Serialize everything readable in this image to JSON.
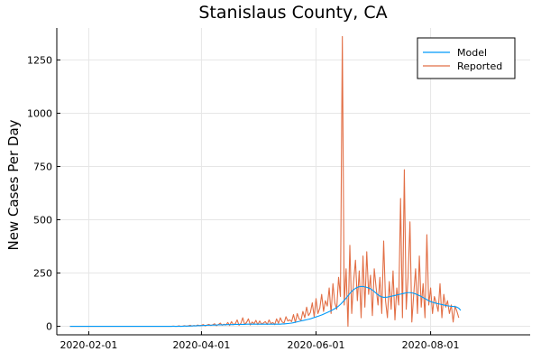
{
  "chart_data": {
    "type": "line",
    "title": "Stanislaus County, CA",
    "xlabel": "",
    "ylabel": "New Cases Per Day",
    "x_start": "2020-01-22",
    "x_ticks": [
      "2020-02-01",
      "2020-04-01",
      "2020-06-01",
      "2020-08-01"
    ],
    "x_range": [
      "2020-01-15",
      "2020-09-23"
    ],
    "ylim": [
      -40,
      1400
    ],
    "y_ticks": [
      0,
      250,
      500,
      750,
      1000,
      1250
    ],
    "y_tick_labels": [
      "0",
      "250",
      "500",
      "750",
      "1000",
      "1250"
    ],
    "grid": true,
    "legend_position": "top-right",
    "series": [
      {
        "name": "Model",
        "color": "#009af9",
        "values": [
          0,
          0,
          0,
          0,
          0,
          0,
          0,
          0,
          0,
          0,
          0,
          0,
          0,
          0,
          0,
          0,
          0,
          0,
          0,
          0,
          0,
          0,
          0,
          0,
          0,
          0,
          0,
          0,
          0,
          0,
          0,
          0,
          0,
          0,
          0,
          0,
          0,
          0,
          0,
          0,
          0,
          0,
          0,
          0,
          0,
          0,
          0,
          0,
          0,
          0,
          0,
          0,
          0,
          0,
          0,
          0,
          0,
          0,
          0,
          0,
          0,
          1,
          1,
          1,
          1,
          2,
          2,
          2,
          3,
          3,
          3,
          4,
          4,
          5,
          5,
          5,
          6,
          6,
          6,
          7,
          7,
          7,
          7,
          8,
          8,
          8,
          8,
          8,
          9,
          9,
          9,
          9,
          9,
          9,
          10,
          10,
          10,
          10,
          10,
          10,
          10,
          10,
          10,
          10,
          10,
          10,
          10,
          10,
          10,
          10,
          10,
          10,
          10,
          11,
          11,
          12,
          13,
          14,
          15,
          17,
          19,
          21,
          23,
          25,
          27,
          29,
          31,
          33,
          35,
          38,
          41,
          44,
          47,
          50,
          53,
          57,
          61,
          65,
          69,
          73,
          78,
          83,
          88,
          95,
          103,
          112,
          122,
          132,
          143,
          154,
          164,
          172,
          178,
          183,
          186,
          187,
          187,
          185,
          183,
          180,
          176,
          170,
          163,
          155,
          148,
          142,
          138,
          136,
          136,
          137,
          139,
          141,
          143,
          145,
          147,
          149,
          151,
          153,
          155,
          157,
          158,
          158,
          157,
          155,
          152,
          148,
          144,
          140,
          135,
          130,
          125,
          120,
          116,
          113,
          110,
          108,
          106,
          104,
          102,
          100,
          98,
          96,
          95,
          94,
          93,
          92,
          90,
          85,
          75
        ]
      },
      {
        "name": "Reported",
        "color": "#e26f46",
        "values": [
          0,
          0,
          0,
          0,
          0,
          0,
          0,
          0,
          0,
          0,
          0,
          0,
          0,
          0,
          0,
          0,
          0,
          0,
          0,
          0,
          0,
          0,
          0,
          0,
          0,
          0,
          0,
          0,
          0,
          0,
          0,
          0,
          0,
          0,
          0,
          0,
          0,
          0,
          0,
          0,
          0,
          0,
          0,
          0,
          0,
          0,
          0,
          0,
          0,
          0,
          0,
          0,
          0,
          0,
          0,
          1,
          0,
          0,
          2,
          0,
          1,
          3,
          0,
          2,
          5,
          1,
          4,
          2,
          6,
          3,
          5,
          8,
          2,
          6,
          9,
          4,
          7,
          12,
          3,
          8,
          15,
          5,
          10,
          6,
          18,
          4,
          22,
          8,
          12,
          30,
          5,
          14,
          40,
          9,
          18,
          35,
          6,
          20,
          12,
          28,
          8,
          25,
          10,
          16,
          22,
          9,
          30,
          12,
          18,
          8,
          35,
          14,
          40,
          20,
          16,
          45,
          25,
          30,
          22,
          55,
          18,
          60,
          35,
          28,
          70,
          40,
          90,
          50,
          65,
          110,
          45,
          130,
          60,
          85,
          150,
          70,
          120,
          95,
          180,
          60,
          200,
          110,
          80,
          230,
          140,
          1360,
          100,
          270,
          0,
          380,
          60,
          210,
          310,
          120,
          260,
          40,
          330,
          90,
          350,
          150,
          240,
          50,
          270,
          180,
          100,
          230,
          60,
          400,
          120,
          40,
          210,
          80,
          260,
          30,
          180,
          100,
          600,
          40,
          735,
          80,
          230,
          490,
          20,
          150,
          270,
          60,
          330,
          90,
          200,
          40,
          430,
          100,
          180,
          60,
          140,
          110,
          70,
          200,
          40,
          150,
          90,
          120,
          60,
          100,
          20,
          95,
          70,
          40
        ]
      }
    ]
  }
}
